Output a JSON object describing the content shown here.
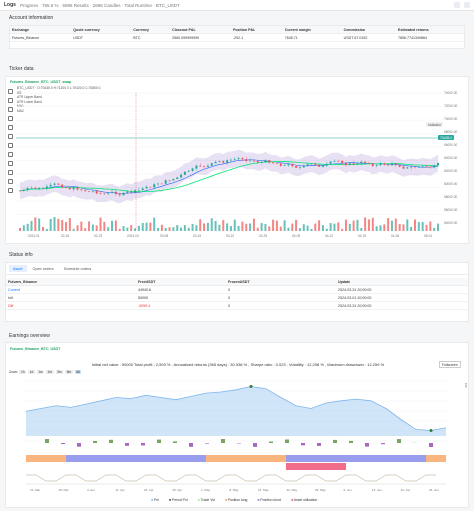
{
  "topbar": {
    "logo": "Logs",
    "meta": "Progress · 765.6 % · 5996 Results · 2898 Candles · Total Runtime · BTC_USDT",
    "right_btn": "Refresh"
  },
  "account": {
    "title": "Account information",
    "headers": [
      "Exchange",
      "Quote currency",
      "Currency",
      "Closeout P&L",
      "Position P&L",
      "Current margin",
      "Commission",
      "Estimated returns"
    ],
    "rows": [
      [
        "Futures_Binance",
        "USDT",
        "BTC",
        "2560.099999999",
        "-292.1",
        "7645.71",
        "USDT 67.0152",
        "7896.7741349864"
      ]
    ]
  },
  "ticker": {
    "title": "Ticker data",
    "pair": "Futures_Binance_BTC_USDT_swap",
    "legend": [
      "BTC_USDT · O:70435.0 H:71200.0 L:70420.0 C:70800.0",
      "BB",
      "ATR Upper Band",
      "ATR Lower Band",
      "MA1",
      "MA2"
    ],
    "indicator_label": "Indicator",
    "y_ticks": [
      "74000.00",
      "72000.00",
      "70000.00",
      "68000.00",
      "66000.00",
      "64000.00",
      "62000.00",
      "60000.00",
      "58000.00",
      "56000.00",
      "54000.00"
    ],
    "x_ticks": [
      "2024-01",
      "02-16",
      "02-23",
      "2024-03",
      "03-08",
      "03-15",
      "03-22",
      "03-29",
      "04-05",
      "04-12",
      "04-19",
      "04-26",
      "05-01"
    ],
    "last_price": "70435.0",
    "colors": {
      "up": "#26a69a",
      "down": "#ef5350",
      "band": "#9575cd",
      "ma1": "#2962ff",
      "ma2": "#00e676"
    }
  },
  "status": {
    "title": "Status info",
    "tabs": [
      "Asset",
      "Open orders",
      "Schedule orders"
    ],
    "headers": [
      "Futures_Binance",
      "FreeUSDT",
      "FrozenUSDT",
      "Update"
    ],
    "rows": [
      [
        "Current",
        "44940.6",
        "0",
        "2024-03-31 20:00:00"
      ],
      [
        "Init",
        "50000",
        "0",
        "2024-03-01 20:00:00"
      ],
      [
        "Diff",
        "-5059.4",
        "0",
        "2024-03-31 20:00:00"
      ]
    ],
    "right_icons": [
      "refresh-icon",
      "settings-icon",
      "expand-icon"
    ]
  },
  "earnings": {
    "title": "Earnings overview",
    "pair": "Futures_Binance_BTC_USDT",
    "summary": "Initial net value : 50000 Total profit : 2,593 % , Annualized returns (365 days) : 30.538 % , Sharpe ratio : 0.023 , Volatility : 12.298 % , Maximum drawdown : 12.259 %",
    "fullscreen": "Fullscreen",
    "zoom_label": "Zoom",
    "zoom_options": [
      "1h",
      "1d",
      "1w",
      "1m",
      "3m",
      "6m",
      "All"
    ],
    "legend": [
      "Pnl",
      "Period Pnl",
      "Trade Vol",
      "Position long",
      "Position short",
      "Asset utilization"
    ],
    "x_ticks": [
      "21. Mar",
      "28. Mar",
      "4. Apr",
      "11. Apr",
      "18. Apr",
      "25. Apr",
      "1. May",
      "8. May",
      "15. May",
      "22. May",
      "29. May",
      "5. Jun",
      "12. Jun",
      "19. Jun",
      "26. Jun"
    ],
    "right_labels": [
      "Pnl",
      "Period Pnl",
      "Trade Vol",
      "Position",
      "Asset utiliza"
    ],
    "colors": {
      "pnl": "#7cb5ec",
      "pos_long": "#f7a35c",
      "pos_short": "#8085e9",
      "neg": "#f15c80",
      "bar": "#90ed7d",
      "period": "#434348"
    }
  }
}
